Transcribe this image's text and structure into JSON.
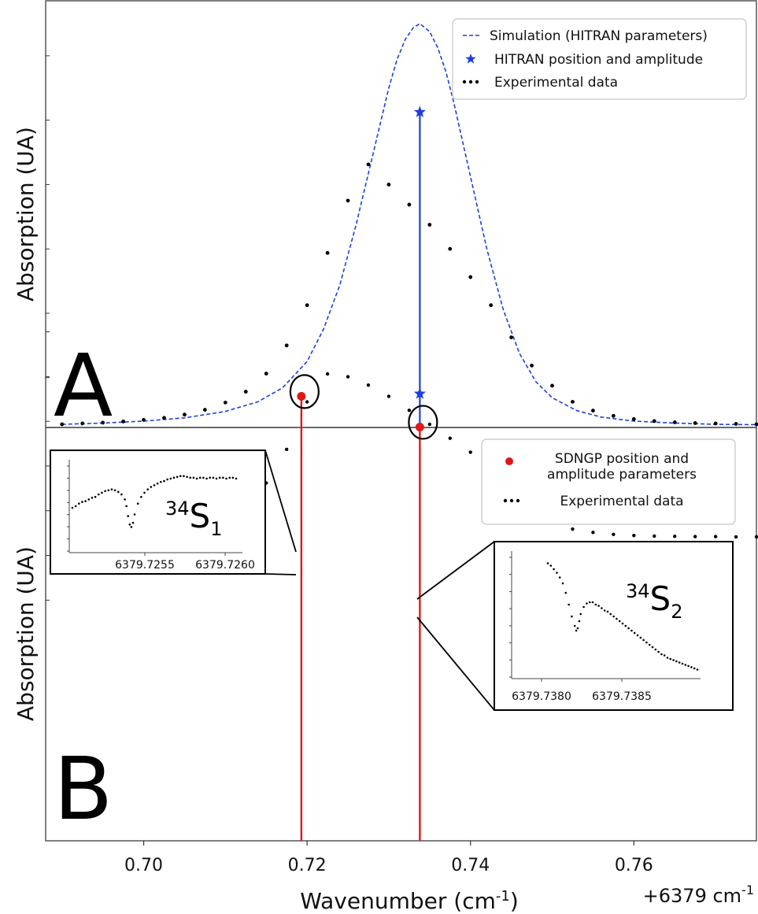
{
  "chart_data": [
    {
      "panel": "A",
      "type": "line",
      "ylabel": "Absorption (UA)",
      "panel_label": "A",
      "xlim": [
        0.688,
        0.775
      ],
      "ylim": [
        0,
        1.0
      ],
      "grid": false,
      "legend_position": "top-right",
      "legend": [
        "Simulation (HITRAN parameters)",
        "HITRAN position and amplitude",
        "Experimental data"
      ],
      "series": [
        {
          "name": "Simulation (HITRAN parameters)",
          "style": "dashed-line",
          "color": "#1f3fe0",
          "x": [
            0.69,
            0.695,
            0.7,
            0.705,
            0.71,
            0.714,
            0.717,
            0.72,
            0.722,
            0.724,
            0.726,
            0.728,
            0.73,
            0.731,
            0.732,
            0.733,
            0.7338,
            0.735,
            0.736,
            0.737,
            0.738,
            0.74,
            0.742,
            0.744,
            0.746,
            0.748,
            0.75,
            0.753,
            0.756,
            0.76,
            0.765,
            0.77,
            0.775
          ],
          "y": [
            0.004,
            0.007,
            0.012,
            0.02,
            0.036,
            0.06,
            0.095,
            0.16,
            0.24,
            0.35,
            0.5,
            0.67,
            0.84,
            0.91,
            0.96,
            0.99,
            1.0,
            0.98,
            0.94,
            0.88,
            0.8,
            0.62,
            0.44,
            0.29,
            0.18,
            0.11,
            0.07,
            0.038,
            0.022,
            0.012,
            0.007,
            0.004,
            0.003
          ]
        },
        {
          "name": "HITRAN position and amplitude",
          "style": "stem-star",
          "color": "#1f3fe0",
          "x": [
            0.7338
          ],
          "y": [
            0.78
          ],
          "y_base": 0.08
        },
        {
          "name": "Experimental data",
          "style": "dots",
          "color": "#000000",
          "x": [
            0.69,
            0.6925,
            0.695,
            0.6975,
            0.7,
            0.7025,
            0.705,
            0.7075,
            0.71,
            0.7125,
            0.715,
            0.7175,
            0.72,
            0.7225,
            0.725,
            0.7275,
            0.73,
            0.7325,
            0.735,
            0.7375,
            0.74,
            0.7425,
            0.745,
            0.7475,
            0.75,
            0.7525,
            0.755,
            0.7575,
            0.76,
            0.7625,
            0.765,
            0.7675,
            0.77,
            0.7725,
            0.775
          ],
          "y": [
            0.004,
            0.006,
            0.008,
            0.011,
            0.015,
            0.02,
            0.028,
            0.04,
            0.058,
            0.085,
            0.13,
            0.2,
            0.3,
            0.43,
            0.56,
            0.65,
            0.6,
            0.55,
            0.5,
            0.44,
            0.37,
            0.3,
            0.22,
            0.15,
            0.1,
            0.06,
            0.038,
            0.025,
            0.017,
            0.012,
            0.009,
            0.007,
            0.006,
            0.005,
            0.004
          ]
        }
      ]
    },
    {
      "panel": "B",
      "type": "scatter",
      "xlabel": "Wavenumber (cm-1)",
      "ylabel": "Absorption (UA)",
      "panel_label": "B",
      "x_offset_label": "+6379 cm-1",
      "xticks": [
        0.7,
        0.72,
        0.74,
        0.76
      ],
      "xtick_labels": [
        "0.70",
        "0.72",
        "0.74",
        "0.76"
      ],
      "xlim": [
        0.688,
        0.775
      ],
      "ylim": [
        0,
        1.0
      ],
      "grid": false,
      "legend_position": "top-right",
      "legend": [
        "SDNGP position and amplitude parameters",
        "Experimental data"
      ],
      "series": [
        {
          "name": "SDNGP position and amplitude parameters",
          "style": "stem-dot",
          "color": "#e01818",
          "x": [
            0.7193,
            0.7338
          ],
          "y": [
            0.52,
            0.41
          ]
        },
        {
          "name": "Experimental data",
          "style": "dots",
          "color": "#000000",
          "x": [
            0.69,
            0.6925,
            0.695,
            0.6975,
            0.7,
            0.7025,
            0.705,
            0.7075,
            0.71,
            0.7125,
            0.715,
            0.7175,
            0.72,
            0.7225,
            0.725,
            0.7275,
            0.73,
            0.7325,
            0.735,
            0.7375,
            0.74,
            0.7425,
            0.745,
            0.7475,
            0.75,
            0.7525,
            0.755,
            0.7575,
            0.76,
            0.7625,
            0.765,
            0.7675,
            0.77,
            0.7725,
            0.775
          ],
          "y": [
            0.02,
            0.02,
            0.021,
            0.022,
            0.025,
            0.03,
            0.04,
            0.06,
            0.09,
            0.14,
            0.21,
            0.33,
            0.5,
            0.6,
            0.59,
            0.56,
            0.52,
            0.47,
            0.42,
            0.37,
            0.32,
            0.24,
            0.16,
            0.11,
            0.07,
            0.045,
            0.033,
            0.026,
            0.022,
            0.02,
            0.019,
            0.018,
            0.018,
            0.017,
            0.017
          ]
        }
      ],
      "insets": [
        {
          "label_sup": "34",
          "label_main": "S",
          "label_sub": "1",
          "xticks": [
            "6379.7255",
            "6379.7260"
          ],
          "points_x": [
            0.0,
            0.02,
            0.04,
            0.06,
            0.08,
            0.1,
            0.12,
            0.14,
            0.16,
            0.18,
            0.2,
            0.22,
            0.24,
            0.26,
            0.28,
            0.3,
            0.32,
            0.33,
            0.34,
            0.35,
            0.36,
            0.37,
            0.38,
            0.4,
            0.42,
            0.44,
            0.46,
            0.48,
            0.5,
            0.52,
            0.54,
            0.56,
            0.58,
            0.6,
            0.62,
            0.64,
            0.66,
            0.68,
            0.7,
            0.72,
            0.74,
            0.76,
            0.78,
            0.8,
            0.82,
            0.84,
            0.86,
            0.88,
            0.9,
            0.92,
            0.94,
            0.96,
            0.98,
            1.0
          ],
          "points_y": [
            0.5,
            0.52,
            0.55,
            0.57,
            0.58,
            0.6,
            0.62,
            0.63,
            0.66,
            0.68,
            0.7,
            0.71,
            0.72,
            0.71,
            0.69,
            0.66,
            0.6,
            0.52,
            0.4,
            0.3,
            0.27,
            0.32,
            0.42,
            0.55,
            0.63,
            0.68,
            0.72,
            0.75,
            0.77,
            0.79,
            0.81,
            0.82,
            0.84,
            0.85,
            0.86,
            0.87,
            0.88,
            0.88,
            0.87,
            0.86,
            0.86,
            0.85,
            0.86,
            0.86,
            0.85,
            0.86,
            0.86,
            0.85,
            0.86,
            0.86,
            0.85,
            0.86,
            0.86,
            0.85
          ]
        },
        {
          "label_sup": "34",
          "label_main": "S",
          "label_sub": "2",
          "xticks": [
            "6379.7380",
            "6379.7385"
          ],
          "points_x": [
            0.0,
            0.02,
            0.04,
            0.06,
            0.08,
            0.1,
            0.12,
            0.14,
            0.16,
            0.18,
            0.19,
            0.2,
            0.21,
            0.22,
            0.24,
            0.26,
            0.28,
            0.3,
            0.32,
            0.34,
            0.36,
            0.38,
            0.4,
            0.42,
            0.44,
            0.46,
            0.48,
            0.5,
            0.52,
            0.54,
            0.56,
            0.58,
            0.6,
            0.62,
            0.64,
            0.66,
            0.68,
            0.7,
            0.72,
            0.74,
            0.76,
            0.78,
            0.8,
            0.82,
            0.84,
            0.86,
            0.88,
            0.9,
            0.92,
            0.94,
            0.96,
            0.98,
            1.0
          ],
          "points_y": [
            0.95,
            0.93,
            0.9,
            0.87,
            0.83,
            0.78,
            0.7,
            0.6,
            0.5,
            0.42,
            0.38,
            0.4,
            0.46,
            0.52,
            0.58,
            0.61,
            0.62,
            0.62,
            0.6,
            0.59,
            0.57,
            0.55,
            0.54,
            0.52,
            0.5,
            0.48,
            0.46,
            0.44,
            0.42,
            0.4,
            0.38,
            0.36,
            0.34,
            0.32,
            0.3,
            0.28,
            0.26,
            0.24,
            0.22,
            0.2,
            0.18,
            0.17,
            0.15,
            0.14,
            0.13,
            0.12,
            0.11,
            0.1,
            0.09,
            0.08,
            0.07,
            0.06,
            0.05
          ]
        }
      ]
    }
  ]
}
